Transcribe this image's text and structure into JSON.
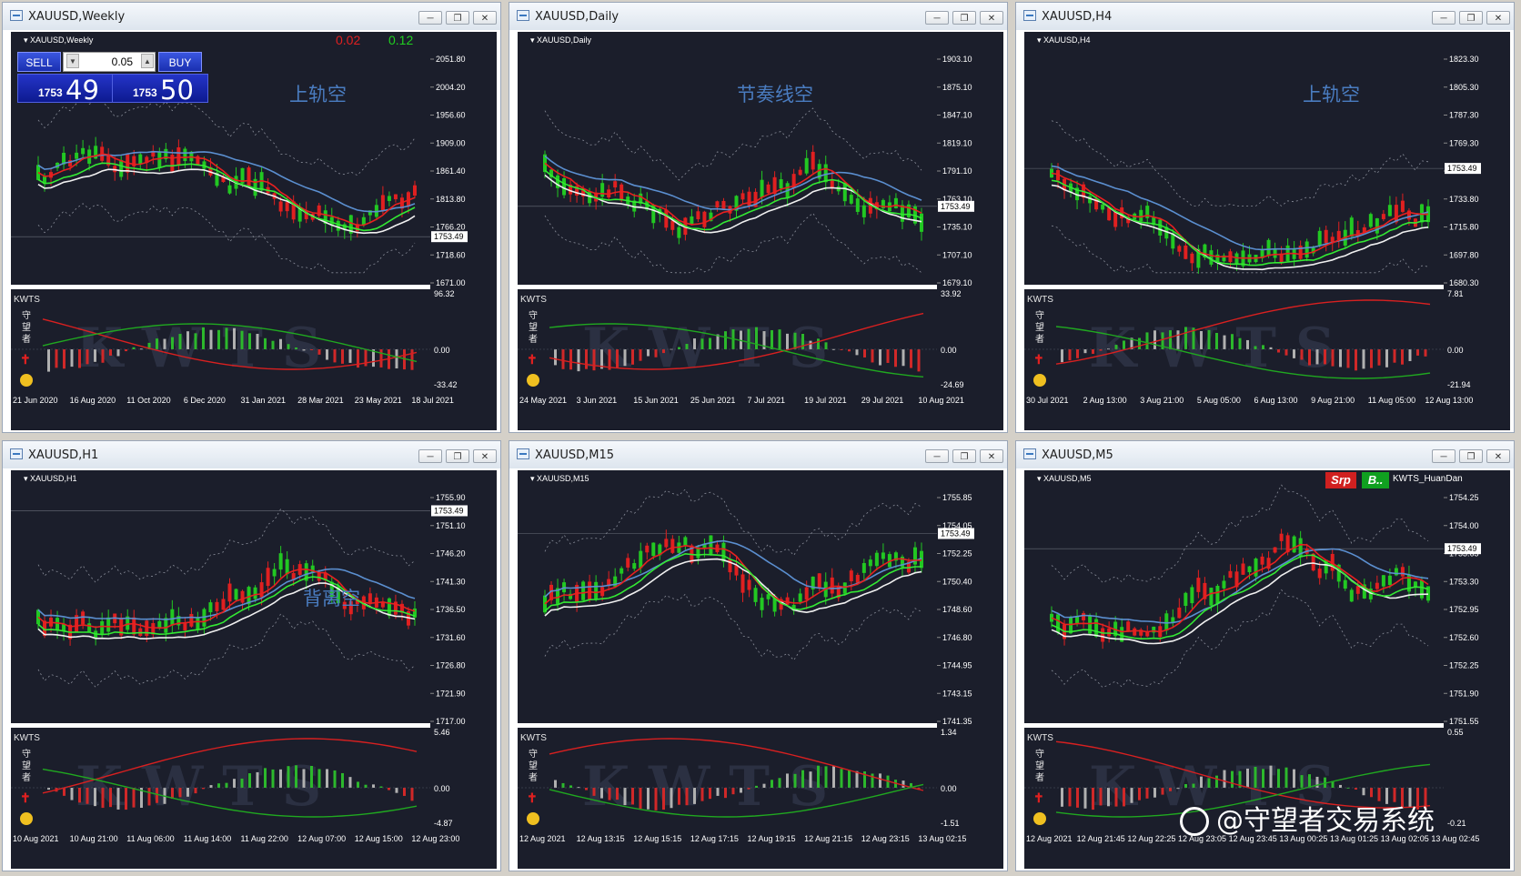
{
  "trade_panel": {
    "sell_label": "SELL",
    "buy_label": "BUY",
    "lot": "0.05",
    "bid_small": "1753",
    "bid_big": "49",
    "ask_small": "1753",
    "ask_big": "50",
    "spread_left": "0.02",
    "spread_right": "0.12"
  },
  "indicator": {
    "name": "KWTS",
    "vertical_text": "守望者"
  },
  "m5_badges": {
    "srp": "Srp",
    "b": "B..",
    "name": "KWTS_HuanDan"
  },
  "watermark": "@守望者交易系统",
  "colors": {
    "bg": "#1b1e2b",
    "bull": "#22c822",
    "bear": "#e02020",
    "red_line": "#e82020",
    "green_line": "#33e833",
    "white_line": "#f0f0f0",
    "blue_line": "#5b8fd0"
  },
  "windows": [
    {
      "title": "XAUUSD,Weekly",
      "symbol": "XAUUSD,Weekly",
      "annotation": "上轨空",
      "price_labels": [
        "2051.80",
        "2004.20",
        "1956.60",
        "1909.00",
        "1861.40",
        "1813.80",
        "1766.20",
        "1718.60",
        "1671.00"
      ],
      "current": "1753.49",
      "cur_frac": 0.81,
      "osc_labels": [
        "96.32",
        "0.00",
        "-33.42"
      ],
      "date_labels": [
        "21 Jun 2020",
        "16 Aug 2020",
        "11 Oct 2020",
        "6 Dec 2020",
        "31 Jan 2021",
        "28 Mar 2021",
        "23 May 2021",
        "18 Jul 2021"
      ],
      "seed": 11
    },
    {
      "title": "XAUUSD,Daily",
      "symbol": "XAUUSD,Daily",
      "annotation": "节奏线空",
      "price_labels": [
        "1903.10",
        "1875.10",
        "1847.10",
        "1819.10",
        "1791.10",
        "1763.10",
        "1735.10",
        "1707.10",
        "1679.10"
      ],
      "current": "1753.49",
      "cur_frac": 0.69,
      "osc_labels": [
        "33.92",
        "0.00",
        "-24.69"
      ],
      "date_labels": [
        "24 May 2021",
        "3 Jun 2021",
        "15 Jun 2021",
        "25 Jun 2021",
        "7 Jul 2021",
        "19 Jul 2021",
        "29 Jul 2021",
        "10 Aug 2021"
      ],
      "seed": 23
    },
    {
      "title": "XAUUSD,H4",
      "symbol": "XAUUSD,H4",
      "annotation": "上轨空",
      "price_labels": [
        "1823.30",
        "1805.30",
        "1787.30",
        "1769.30",
        "1751.30",
        "1733.80",
        "1715.80",
        "1697.80",
        "1680.30"
      ],
      "current": "1753.49",
      "cur_frac": 0.54,
      "osc_labels": [
        "7.81",
        "0.00",
        "-21.94"
      ],
      "date_labels": [
        "30 Jul 2021",
        "2 Aug 13:00",
        "3 Aug 21:00",
        "5 Aug 05:00",
        "6 Aug 13:00",
        "9 Aug 21:00",
        "11 Aug 05:00",
        "12 Aug 13:00"
      ],
      "seed": 37
    },
    {
      "title": "XAUUSD,H1",
      "symbol": "XAUUSD,H1",
      "annotation": "背离空",
      "price_labels": [
        "1755.90",
        "1751.10",
        "1746.20",
        "1741.30",
        "1736.50",
        "1731.60",
        "1726.80",
        "1721.90",
        "1717.00"
      ],
      "current": "1753.49",
      "cur_frac": 0.16,
      "osc_labels": [
        "5.46",
        "0.00",
        "-4.87"
      ],
      "date_labels": [
        "10 Aug 2021",
        "10 Aug 21:00",
        "11 Aug 06:00",
        "11 Aug 14:00",
        "11 Aug 22:00",
        "12 Aug 07:00",
        "12 Aug 15:00",
        "12 Aug 23:00"
      ],
      "seed": 41
    },
    {
      "title": "XAUUSD,M15",
      "symbol": "XAUUSD,M15",
      "annotation": "",
      "price_labels": [
        "1755.85",
        "1754.05",
        "1752.25",
        "1750.40",
        "1748.60",
        "1746.80",
        "1744.95",
        "1743.15",
        "1741.35"
      ],
      "current": "1753.49",
      "cur_frac": 0.25,
      "osc_labels": [
        "1.34",
        "0.00",
        "-1.51"
      ],
      "date_labels": [
        "12 Aug 2021",
        "12 Aug 13:15",
        "12 Aug 15:15",
        "12 Aug 17:15",
        "12 Aug 19:15",
        "12 Aug 21:15",
        "12 Aug 23:15",
        "13 Aug 02:15"
      ],
      "seed": 53
    },
    {
      "title": "XAUUSD,M5",
      "symbol": "XAUUSD,M5",
      "annotation": "",
      "price_labels": [
        "1754.25",
        "1754.00",
        "1753.65",
        "1753.30",
        "1752.95",
        "1752.60",
        "1752.25",
        "1751.90",
        "1751.55"
      ],
      "current": "1753.49",
      "cur_frac": 0.31,
      "osc_labels": [
        "0.55",
        "",
        "-0.21"
      ],
      "date_labels": [
        "12 Aug 2021",
        "12 Aug 21:45",
        "12 Aug 22:25",
        "12 Aug 23:05",
        "12 Aug 23:45",
        "13 Aug 00:25",
        "13 Aug 01:25",
        "13 Aug 02:05",
        "13 Aug 02:45"
      ],
      "seed": 67
    }
  ]
}
